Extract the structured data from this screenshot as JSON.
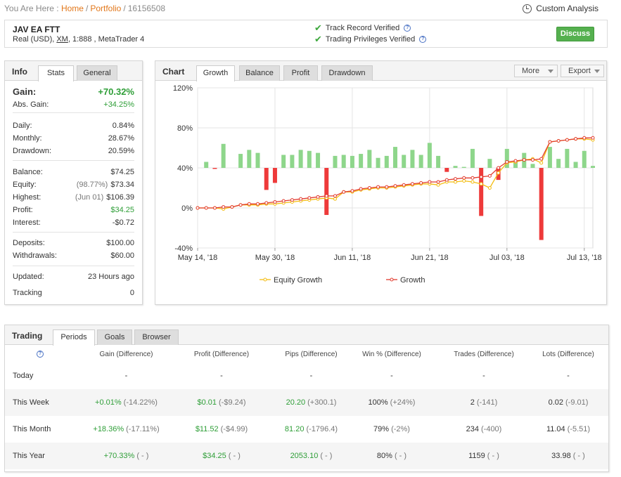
{
  "breadcrumb": {
    "prefix": "You Are Here :",
    "home": "Home",
    "portfolio": "Portfolio",
    "id": "16156508"
  },
  "custom_analysis": "Custom Analysis",
  "account": {
    "name": "JAV EA FTT",
    "sub_prefix": "Real (USD), ",
    "broker": "XM",
    "sub_suffix": ", 1:888 , MetaTrader 4",
    "track_record": "Track Record Verified",
    "trading_privileges": "Trading Privileges Verified",
    "discuss": "Discuss"
  },
  "info": {
    "title": "Info",
    "tabs": [
      "Stats",
      "General"
    ],
    "gain_label": "Gain:",
    "gain_value": "+70.32%",
    "abs_gain_label": "Abs. Gain:",
    "abs_gain_value": "+34.25%",
    "daily_label": "Daily:",
    "daily_value": "0.84%",
    "monthly_label": "Monthly:",
    "monthly_value": "28.67%",
    "drawdown_label": "Drawdown:",
    "drawdown_value": "20.59%",
    "balance_label": "Balance:",
    "balance_value": "$74.25",
    "equity_label": "Equity:",
    "equity_paren": "(98.77%)",
    "equity_value": "$73.34",
    "highest_label": "Highest:",
    "highest_paren": "(Jun 01)",
    "highest_value": "$106.39",
    "profit_label": "Profit:",
    "profit_value": "$34.25",
    "interest_label": "Interest:",
    "interest_value": "-$0.72",
    "deposits_label": "Deposits:",
    "deposits_value": "$100.00",
    "withdrawals_label": "Withdrawals:",
    "withdrawals_value": "$60.00",
    "updated_label": "Updated:",
    "updated_value": "23 Hours ago",
    "tracking_label": "Tracking",
    "tracking_value": "0"
  },
  "chart_panel": {
    "title": "Chart",
    "tabs": [
      "Growth",
      "Balance",
      "Profit",
      "Drawdown"
    ],
    "more": "More",
    "export": "Export"
  },
  "chart_data": {
    "type": "bar+line",
    "ylim": [
      -40,
      120
    ],
    "y_ticks": [
      "120%",
      "80%",
      "40%",
      "0%",
      "-40%"
    ],
    "y_tick_values": [
      120,
      80,
      40,
      0,
      -40
    ],
    "x_ticks": [
      "May 14, '18",
      "May 30, '18",
      "Jun 11, '18",
      "Jun 21, '18",
      "Jul 03, '18",
      "Jul 13, '18"
    ],
    "x_tick_index": [
      0,
      9,
      18,
      27,
      36,
      45
    ],
    "n_days": 47,
    "colors": {
      "bar_pos": "#8ed68b",
      "bar_neg": "#ee3a3a",
      "equity": "#f3bd12",
      "growth": "#e23b2f"
    },
    "bars": [
      null,
      6,
      -1,
      24,
      null,
      14,
      18,
      15,
      -22,
      -15,
      13,
      13,
      18,
      17,
      15,
      -47,
      12,
      13,
      12,
      14,
      18,
      10,
      12,
      21,
      13,
      18,
      13,
      25,
      12,
      -4,
      2,
      1,
      19,
      -48,
      9,
      -12,
      19,
      7,
      15,
      4,
      -72,
      21,
      9,
      19,
      6,
      17,
      2
    ],
    "series": [
      {
        "name": "Equity Growth",
        "values": [
          0,
          0,
          0,
          -1,
          1,
          3,
          3,
          3,
          4,
          4,
          5,
          6,
          7,
          8,
          9,
          10,
          9,
          16,
          16,
          18,
          19,
          20,
          20,
          21,
          22,
          23,
          24,
          24,
          23,
          26,
          26,
          27,
          26,
          24,
          20,
          35,
          45,
          46,
          48,
          49,
          45,
          66,
          67,
          68,
          69,
          69,
          68
        ]
      },
      {
        "name": "Growth",
        "values": [
          0,
          0,
          0,
          1,
          1,
          3,
          4,
          4,
          5,
          6,
          7,
          8,
          9,
          10,
          11,
          12,
          12,
          16,
          17,
          19,
          20,
          21,
          21,
          22,
          23,
          24,
          25,
          26,
          26,
          28,
          29,
          30,
          30,
          31,
          32,
          40,
          46,
          47,
          48,
          48,
          49,
          66,
          67,
          68,
          69,
          70,
          70
        ]
      }
    ],
    "legend": "bottom"
  },
  "trading": {
    "title": "Trading",
    "tabs": [
      "Periods",
      "Goals",
      "Browser"
    ],
    "headers": [
      "Gain (Difference)",
      "Profit (Difference)",
      "Pips (Difference)",
      "Win % (Difference)",
      "Trades (Difference)",
      "Lots (Difference)"
    ],
    "rows": [
      {
        "label": "Today",
        "gain": "-",
        "gain_diff": "",
        "profit": "-",
        "profit_diff": "",
        "pips": "-",
        "pips_diff": "",
        "win": "-",
        "win_diff": "",
        "trades": "-",
        "trades_diff": "",
        "lots": "-",
        "lots_diff": ""
      },
      {
        "label": "This Week",
        "gain": "+0.01%",
        "gain_diff": "(-14.22%)",
        "profit": "$0.01",
        "profit_diff": "(-$9.24)",
        "pips": "20.20",
        "pips_diff": "(+300.1)",
        "win": "100%",
        "win_diff": "(+24%)",
        "trades": "2",
        "trades_diff": "(-141)",
        "lots": "0.02",
        "lots_diff": "(-9.01)"
      },
      {
        "label": "This Month",
        "gain": "+18.36%",
        "gain_diff": "(-17.11%)",
        "profit": "$11.52",
        "profit_diff": "(-$4.99)",
        "pips": "81.20",
        "pips_diff": "(-1796.4)",
        "win": "79%",
        "win_diff": "(-2%)",
        "trades": "234",
        "trades_diff": "(-400)",
        "lots": "11.04",
        "lots_diff": "(-5.51)"
      },
      {
        "label": "This Year",
        "gain": "+70.33%",
        "gain_diff": "( - )",
        "profit": "$34.25",
        "profit_diff": "( - )",
        "pips": "2053.10",
        "pips_diff": "( - )",
        "win": "80%",
        "win_diff": "( - )",
        "trades": "1159",
        "trades_diff": "( - )",
        "lots": "33.98",
        "lots_diff": "( - )"
      }
    ]
  }
}
